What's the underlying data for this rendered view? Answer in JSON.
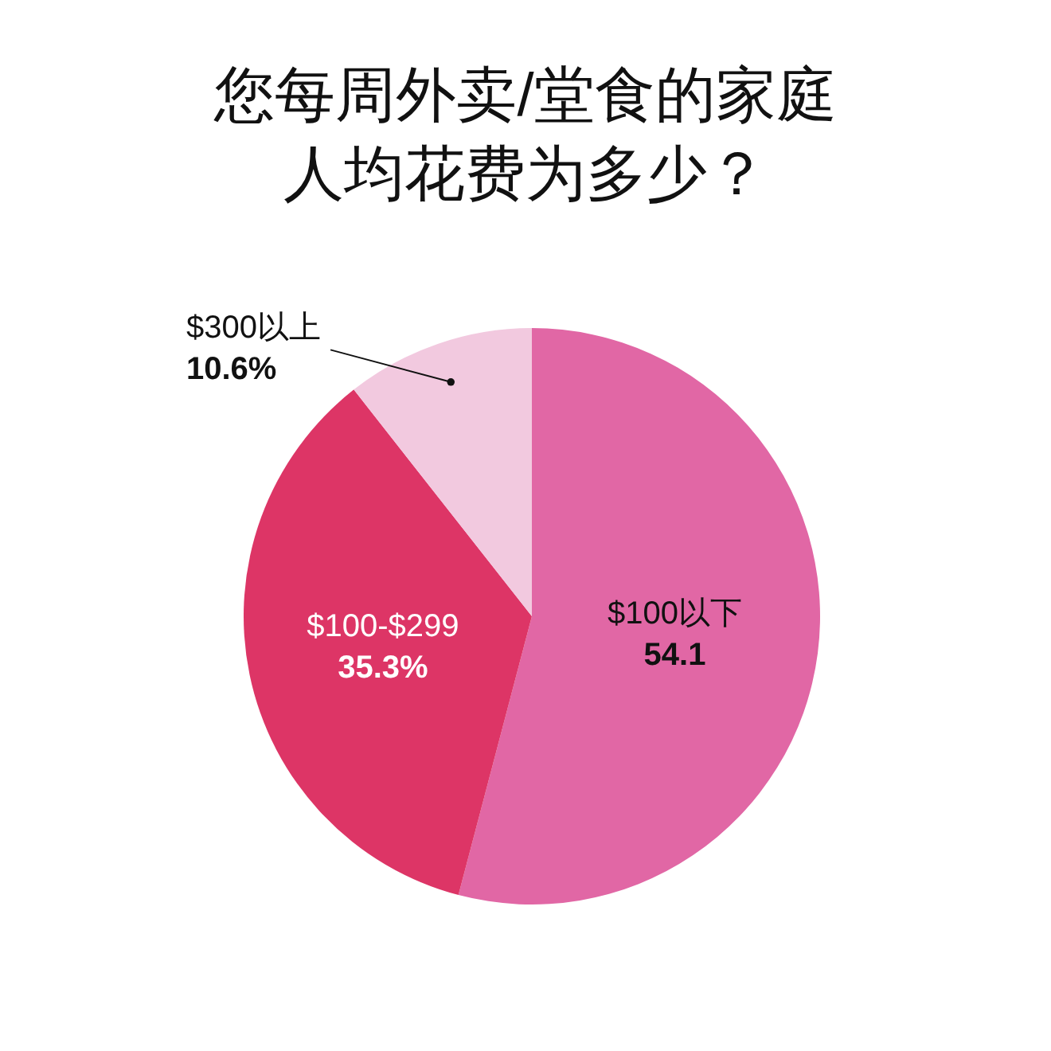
{
  "chart_data": {
    "type": "pie",
    "title": "您每周外卖/堂食的家庭人均花费为多少？",
    "categories": [
      "$100以下",
      "$100-$299",
      "$300以上"
    ],
    "values": [
      54.1,
      35.3,
      10.6
    ],
    "colors": [
      "#e167a5",
      "#dd3566",
      "#f2c9df"
    ],
    "value_labels": [
      "54.1",
      "35.3%",
      "10.6%"
    ]
  }
}
